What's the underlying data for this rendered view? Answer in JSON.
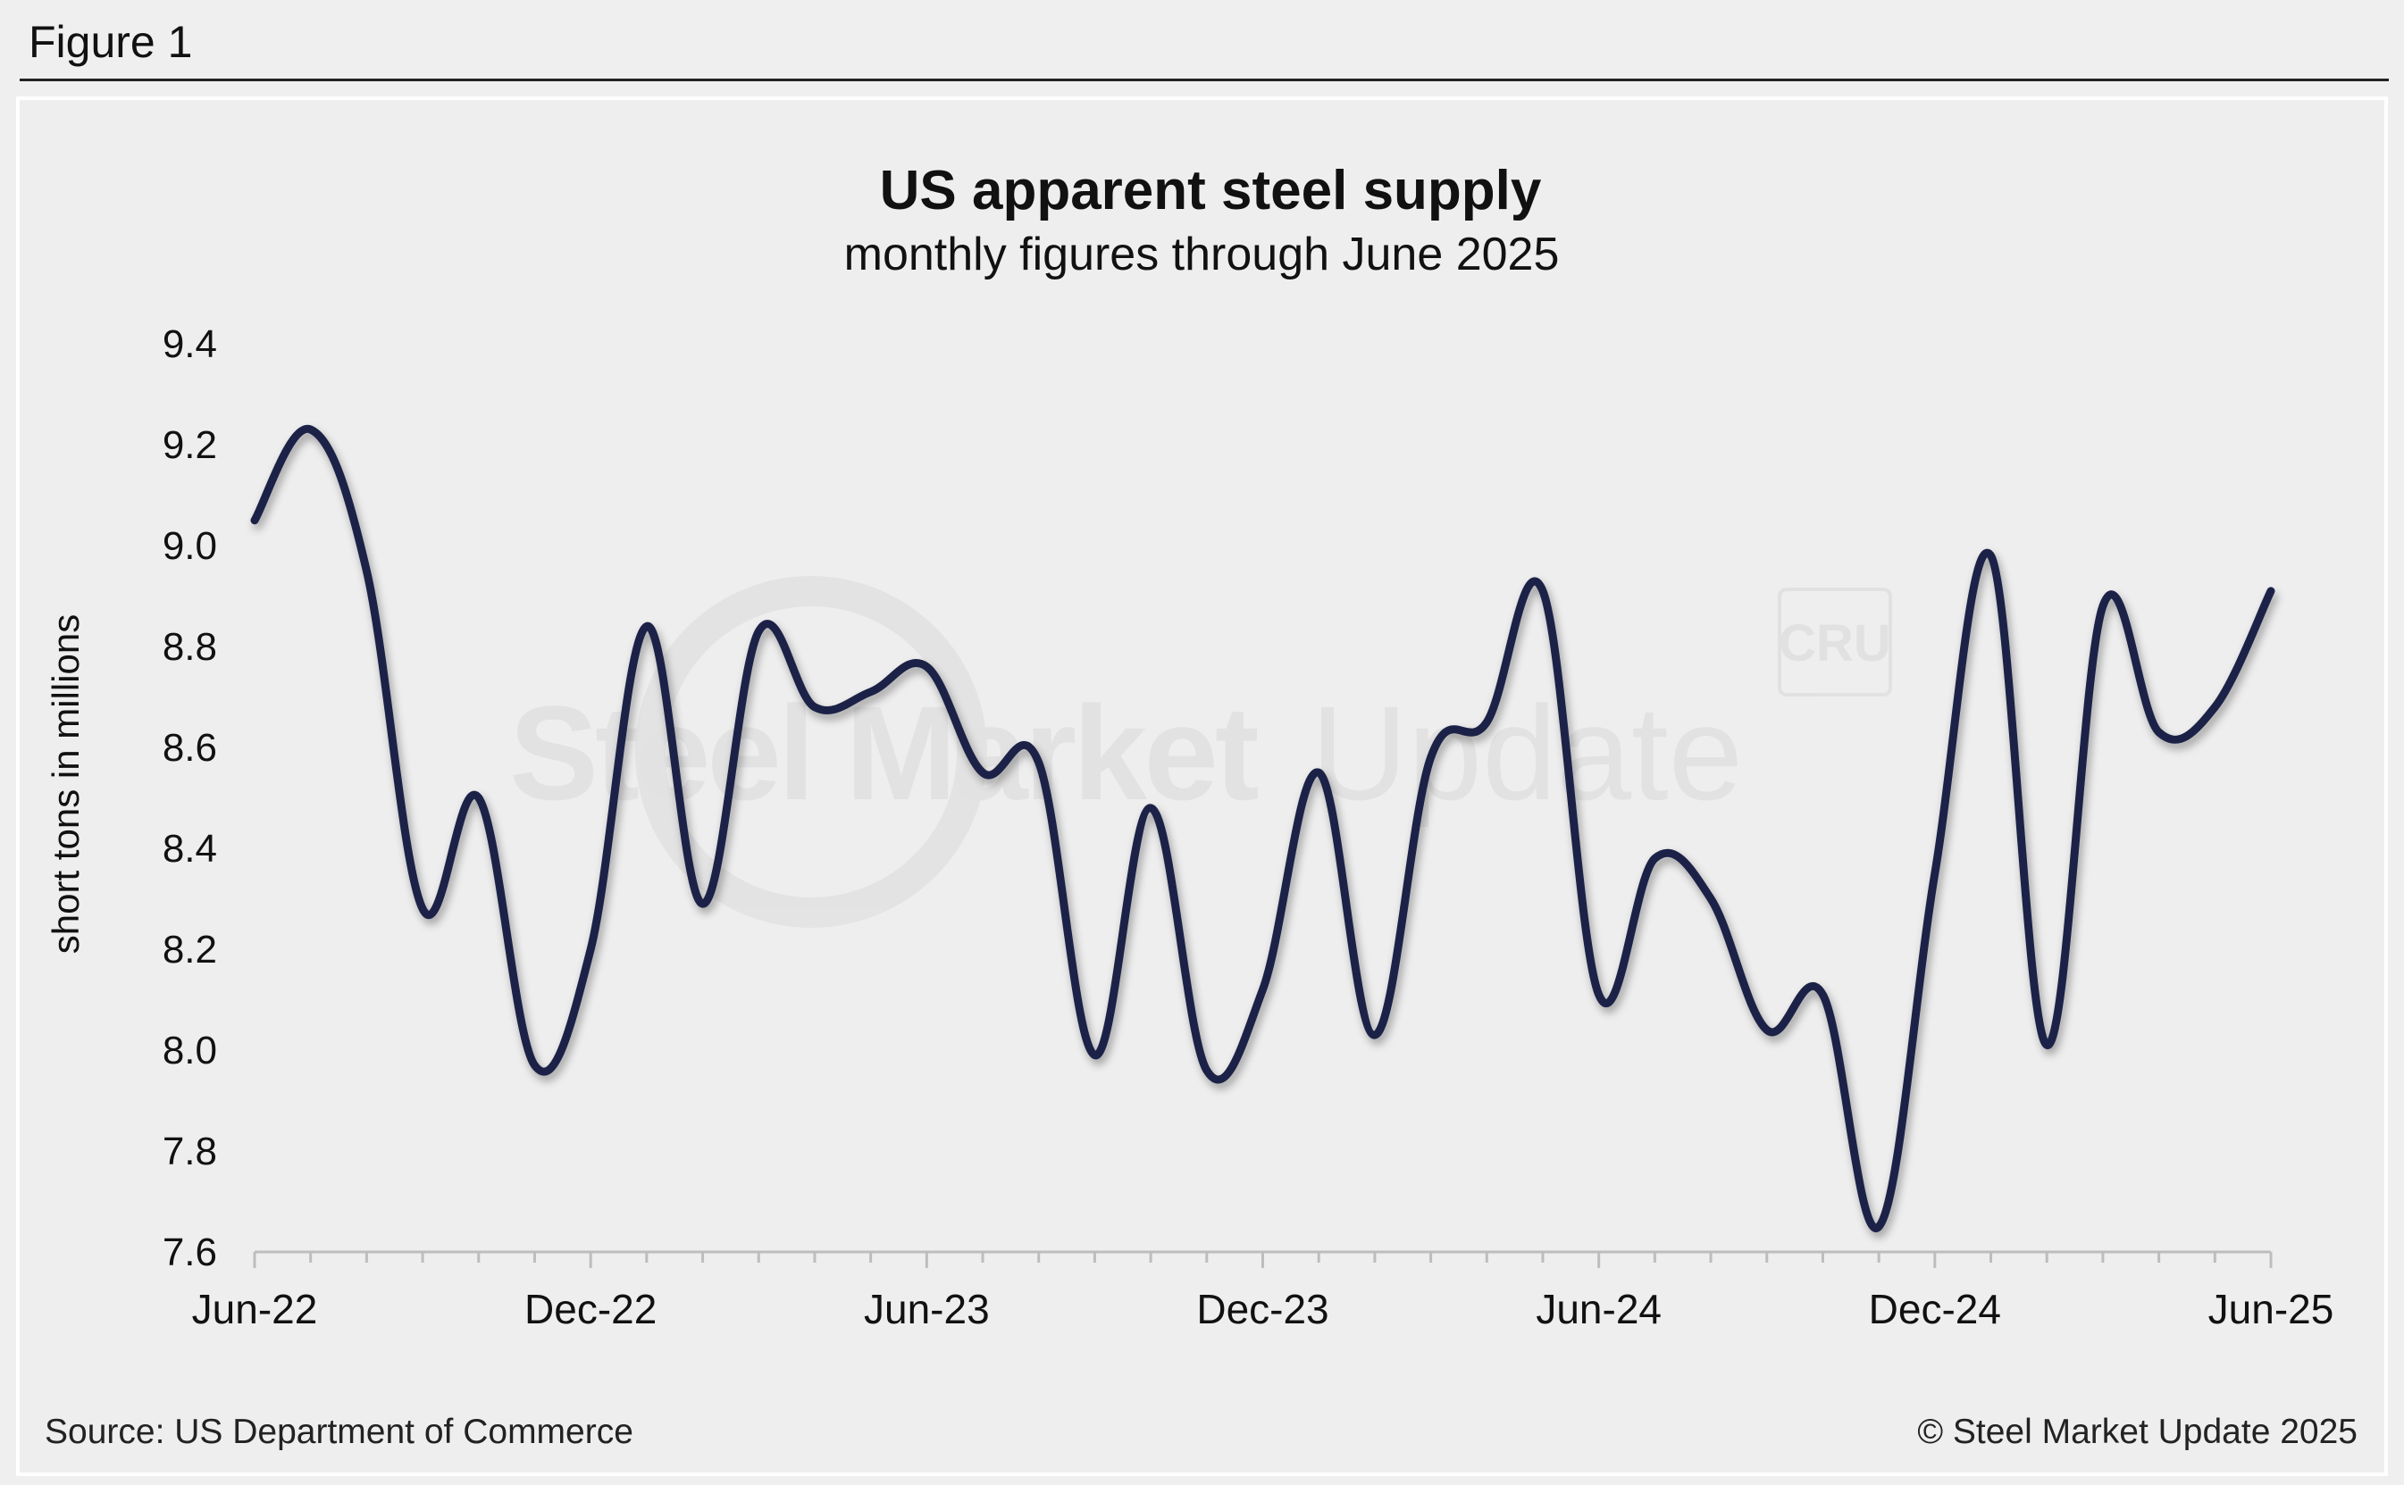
{
  "figure_label": "Figure 1",
  "source": "Source: US Department of Commerce",
  "copyright": "© Steel Market Update 2025",
  "watermark": {
    "text_bold": "Steel Market",
    "text_light": "Update",
    "logo": "CRU"
  },
  "colors": {
    "line": "#1c2247",
    "background": "#eeeeee",
    "axis": "#bdbdbd"
  },
  "chart_data": {
    "type": "line",
    "title": "US apparent steel supply",
    "subtitle": "monthly figures through June 2025",
    "xlabel": "",
    "ylabel": "short tons in millions",
    "ylim": [
      7.6,
      9.4
    ],
    "yticks": [
      7.6,
      7.8,
      8.0,
      8.2,
      8.4,
      8.6,
      8.8,
      9.0,
      9.2,
      9.4
    ],
    "ytick_labels": [
      "7.6",
      "7.8",
      "8.0",
      "8.2",
      "8.4",
      "8.6",
      "8.8",
      "9.0",
      "9.2",
      "9.4"
    ],
    "xtick_labels": [
      "Jun-22",
      "Dec-22",
      "Jun-23",
      "Dec-23",
      "Jun-24",
      "Dec-24",
      "Jun-25"
    ],
    "xtick_label_months": [
      0,
      6,
      12,
      18,
      24,
      30,
      36
    ],
    "grid": false,
    "legend": "none",
    "series": [
      {
        "name": "US apparent steel supply",
        "x": [
          "Jun-22",
          "Jul-22",
          "Aug-22",
          "Sep-22",
          "Oct-22",
          "Nov-22",
          "Dec-22",
          "Jan-23",
          "Feb-23",
          "Mar-23",
          "Apr-23",
          "May-23",
          "Jun-23",
          "Jul-23",
          "Aug-23",
          "Sep-23",
          "Oct-23",
          "Nov-23",
          "Dec-23",
          "Jan-24",
          "Feb-24",
          "Mar-24",
          "Apr-24",
          "May-24",
          "Jun-24",
          "Jul-24",
          "Aug-24",
          "Sep-24",
          "Oct-24",
          "Nov-24",
          "Dec-24",
          "Jan-25",
          "Feb-25",
          "Mar-25",
          "Apr-25",
          "May-25",
          "Jun-25"
        ],
        "values": [
          9.05,
          9.23,
          8.95,
          8.28,
          8.5,
          7.97,
          8.2,
          8.84,
          8.29,
          8.83,
          8.68,
          8.71,
          8.76,
          8.55,
          8.57,
          7.99,
          8.48,
          7.96,
          8.12,
          8.55,
          8.03,
          8.58,
          8.65,
          8.91,
          8.11,
          8.38,
          8.3,
          8.04,
          8.11,
          7.65,
          8.35,
          8.98,
          8.01,
          8.88,
          8.63,
          8.68,
          8.91
        ]
      }
    ]
  }
}
